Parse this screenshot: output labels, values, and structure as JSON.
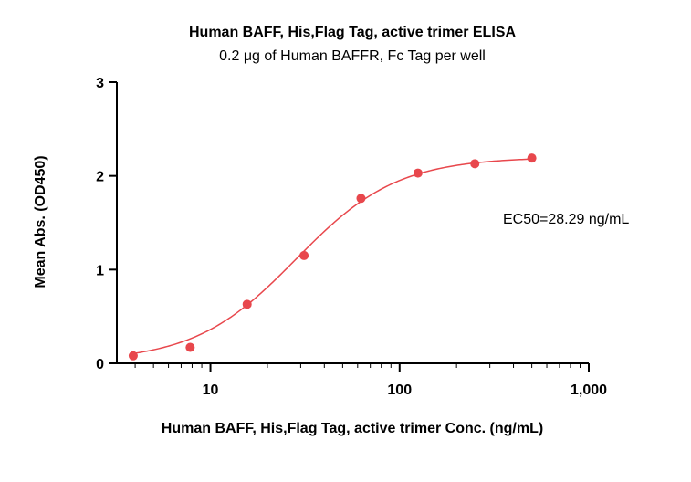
{
  "chart_data": {
    "type": "scatter",
    "title": "Human BAFF, His,Flag Tag, active trimer ELISA",
    "subtitle": "0.2 μg of Human BAFFR, Fc Tag per well",
    "xlabel": "Human BAFF, His,Flag Tag, active trimer Conc. (ng/mL)",
    "ylabel": "Mean Abs. (OD450)",
    "x_scale": "log",
    "xlim": [
      3.2,
      1000
    ],
    "ylim": [
      0,
      3
    ],
    "x_ticks": [
      10,
      100,
      1000
    ],
    "x_tick_labels": [
      "10",
      "100",
      "1,000"
    ],
    "y_ticks": [
      0,
      1,
      2,
      3
    ],
    "y_tick_labels": [
      "0",
      "1",
      "2",
      "3"
    ],
    "grid": false,
    "series": [
      {
        "x": [
          3.906,
          7.813,
          15.625,
          31.25,
          62.5,
          125,
          250,
          500
        ],
        "y": [
          0.08,
          0.17,
          0.63,
          1.15,
          1.76,
          2.03,
          2.13,
          2.19
        ],
        "color": "#e8474c",
        "fit": "four-parameter logistic",
        "fit_params": {
          "bottom": 0.02,
          "top": 2.2,
          "ec50": 28.29,
          "hill": 1.62
        }
      }
    ],
    "annotation": "EC50=28.29 ng/mL",
    "colors": {
      "points": "#e8474c",
      "curve": "#e8474c",
      "axis": "#000000"
    }
  }
}
